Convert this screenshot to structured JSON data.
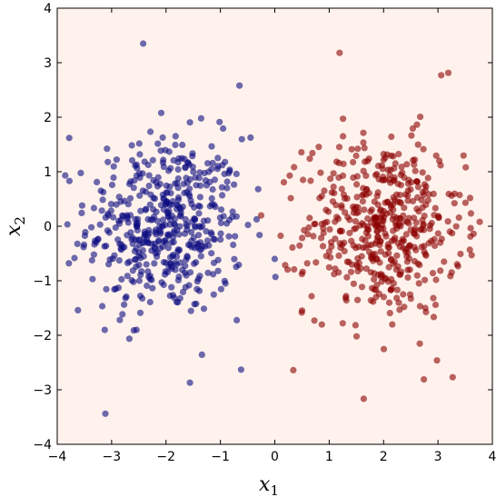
{
  "chart_data": {
    "type": "scatter",
    "title": "",
    "xlabel": "x",
    "xlabel_subscript": "1",
    "ylabel": "x",
    "ylabel_subscript": "2",
    "xlim": [
      -4,
      4
    ],
    "ylim": [
      -4,
      4
    ],
    "xticks": [
      -4,
      -3,
      -2,
      -1,
      0,
      1,
      2,
      3,
      4
    ],
    "yticks": [
      -4,
      -3,
      -2,
      -1,
      0,
      1,
      2,
      3,
      4
    ],
    "tick_labels": [
      "−4",
      "−3",
      "−2",
      "−1",
      "0",
      "1",
      "2",
      "3",
      "4"
    ],
    "grid": false,
    "background_color": "#fff2ec",
    "series": [
      {
        "color": "#0b0b80",
        "center": [
          -2,
          0
        ],
        "spread": [
          0.72,
          0.82
        ],
        "count": 500,
        "points": [
          [
            -2.42,
            3.35
          ],
          [
            -0.65,
            2.58
          ],
          [
            -3.78,
            1.62
          ],
          [
            -1.47,
            0.12
          ],
          [
            -2.85,
            -1.72
          ],
          [
            -1.56,
            -2.87
          ],
          [
            -0.62,
            -2.63
          ],
          [
            -3.62,
            -1.54
          ],
          [
            -1.16,
            1.05
          ],
          [
            -2.08,
            -1.03
          ]
        ]
      },
      {
        "color": "#8b0000",
        "center": [
          2,
          0
        ],
        "spread": [
          0.72,
          0.82
        ],
        "count": 500,
        "points": [
          [
            1.19,
            3.18
          ],
          [
            3.06,
            2.77
          ],
          [
            0.34,
            -2.64
          ],
          [
            2.74,
            -2.81
          ],
          [
            3.27,
            -2.77
          ],
          [
            1.25,
            -1.78
          ],
          [
            2.12,
            0.25
          ],
          [
            0.52,
            0.85
          ],
          [
            3.51,
            1.08
          ],
          [
            2.47,
            -0.59
          ]
        ]
      }
    ]
  }
}
